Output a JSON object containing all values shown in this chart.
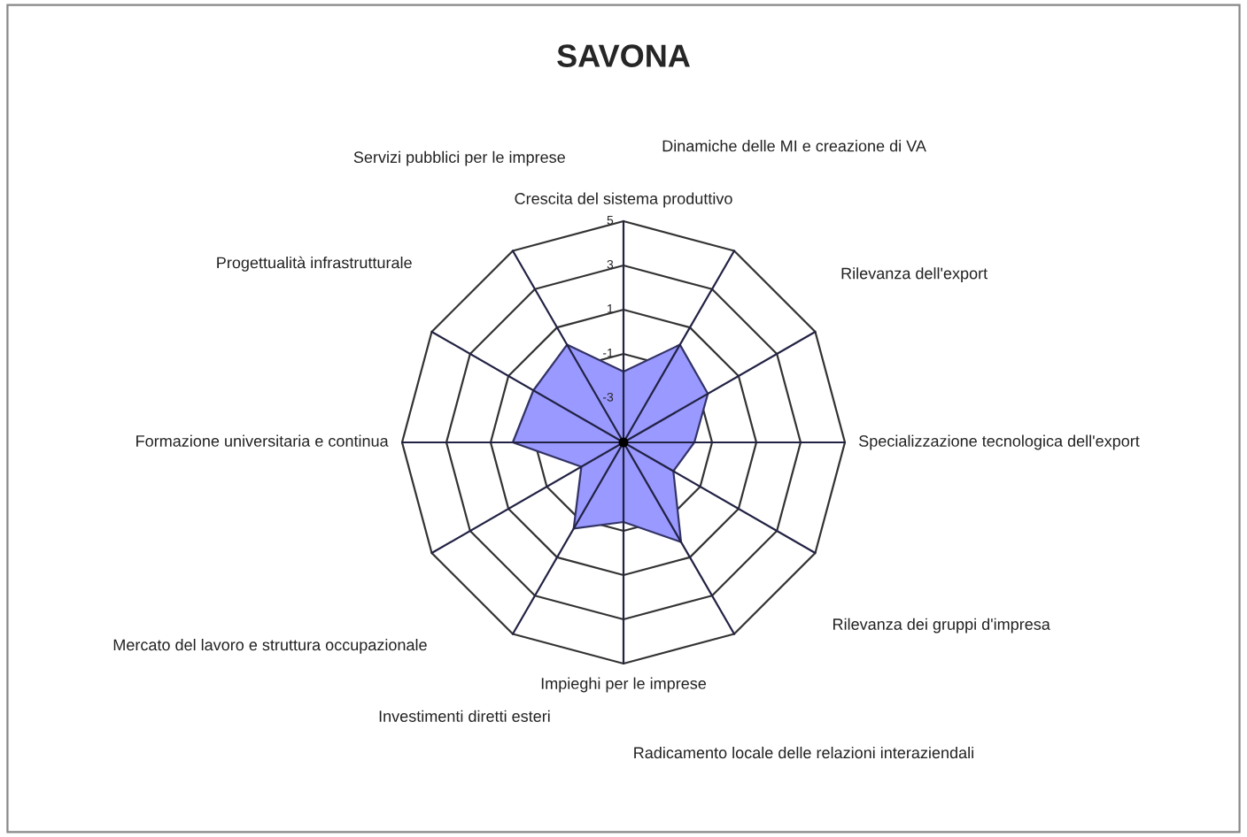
{
  "chart_data": {
    "type": "radar",
    "title": "SAVONA",
    "categories": [
      "Crescita del sistema produttivo",
      "Dinamiche delle MI e creazione di VA",
      "Rilevanza dell'export",
      "Specializzazione tecnologica dell'export",
      "Rilevanza dei gruppi d'impresa",
      "Radicamento locale delle relazioni interaziendali",
      "Impieghi per le imprese",
      "Investimenti diretti esteri",
      "Mercato del lavoro e struttura occupazionale",
      "Formazione universitaria e continua",
      "Progettualità infrastrutturale",
      "Servizi pubblici per le imprese"
    ],
    "series": [
      {
        "color": "#9999ff",
        "values": [
          -1.8,
          0.1,
          -0.6,
          -1.8,
          -2.4,
          0.2,
          -1.4,
          -0.5,
          -2.8,
          0.0,
          -0.3,
          0.1
        ]
      }
    ],
    "ylim": [
      -5,
      5
    ],
    "yticks": [
      -3,
      -1,
      1,
      3,
      5
    ]
  }
}
